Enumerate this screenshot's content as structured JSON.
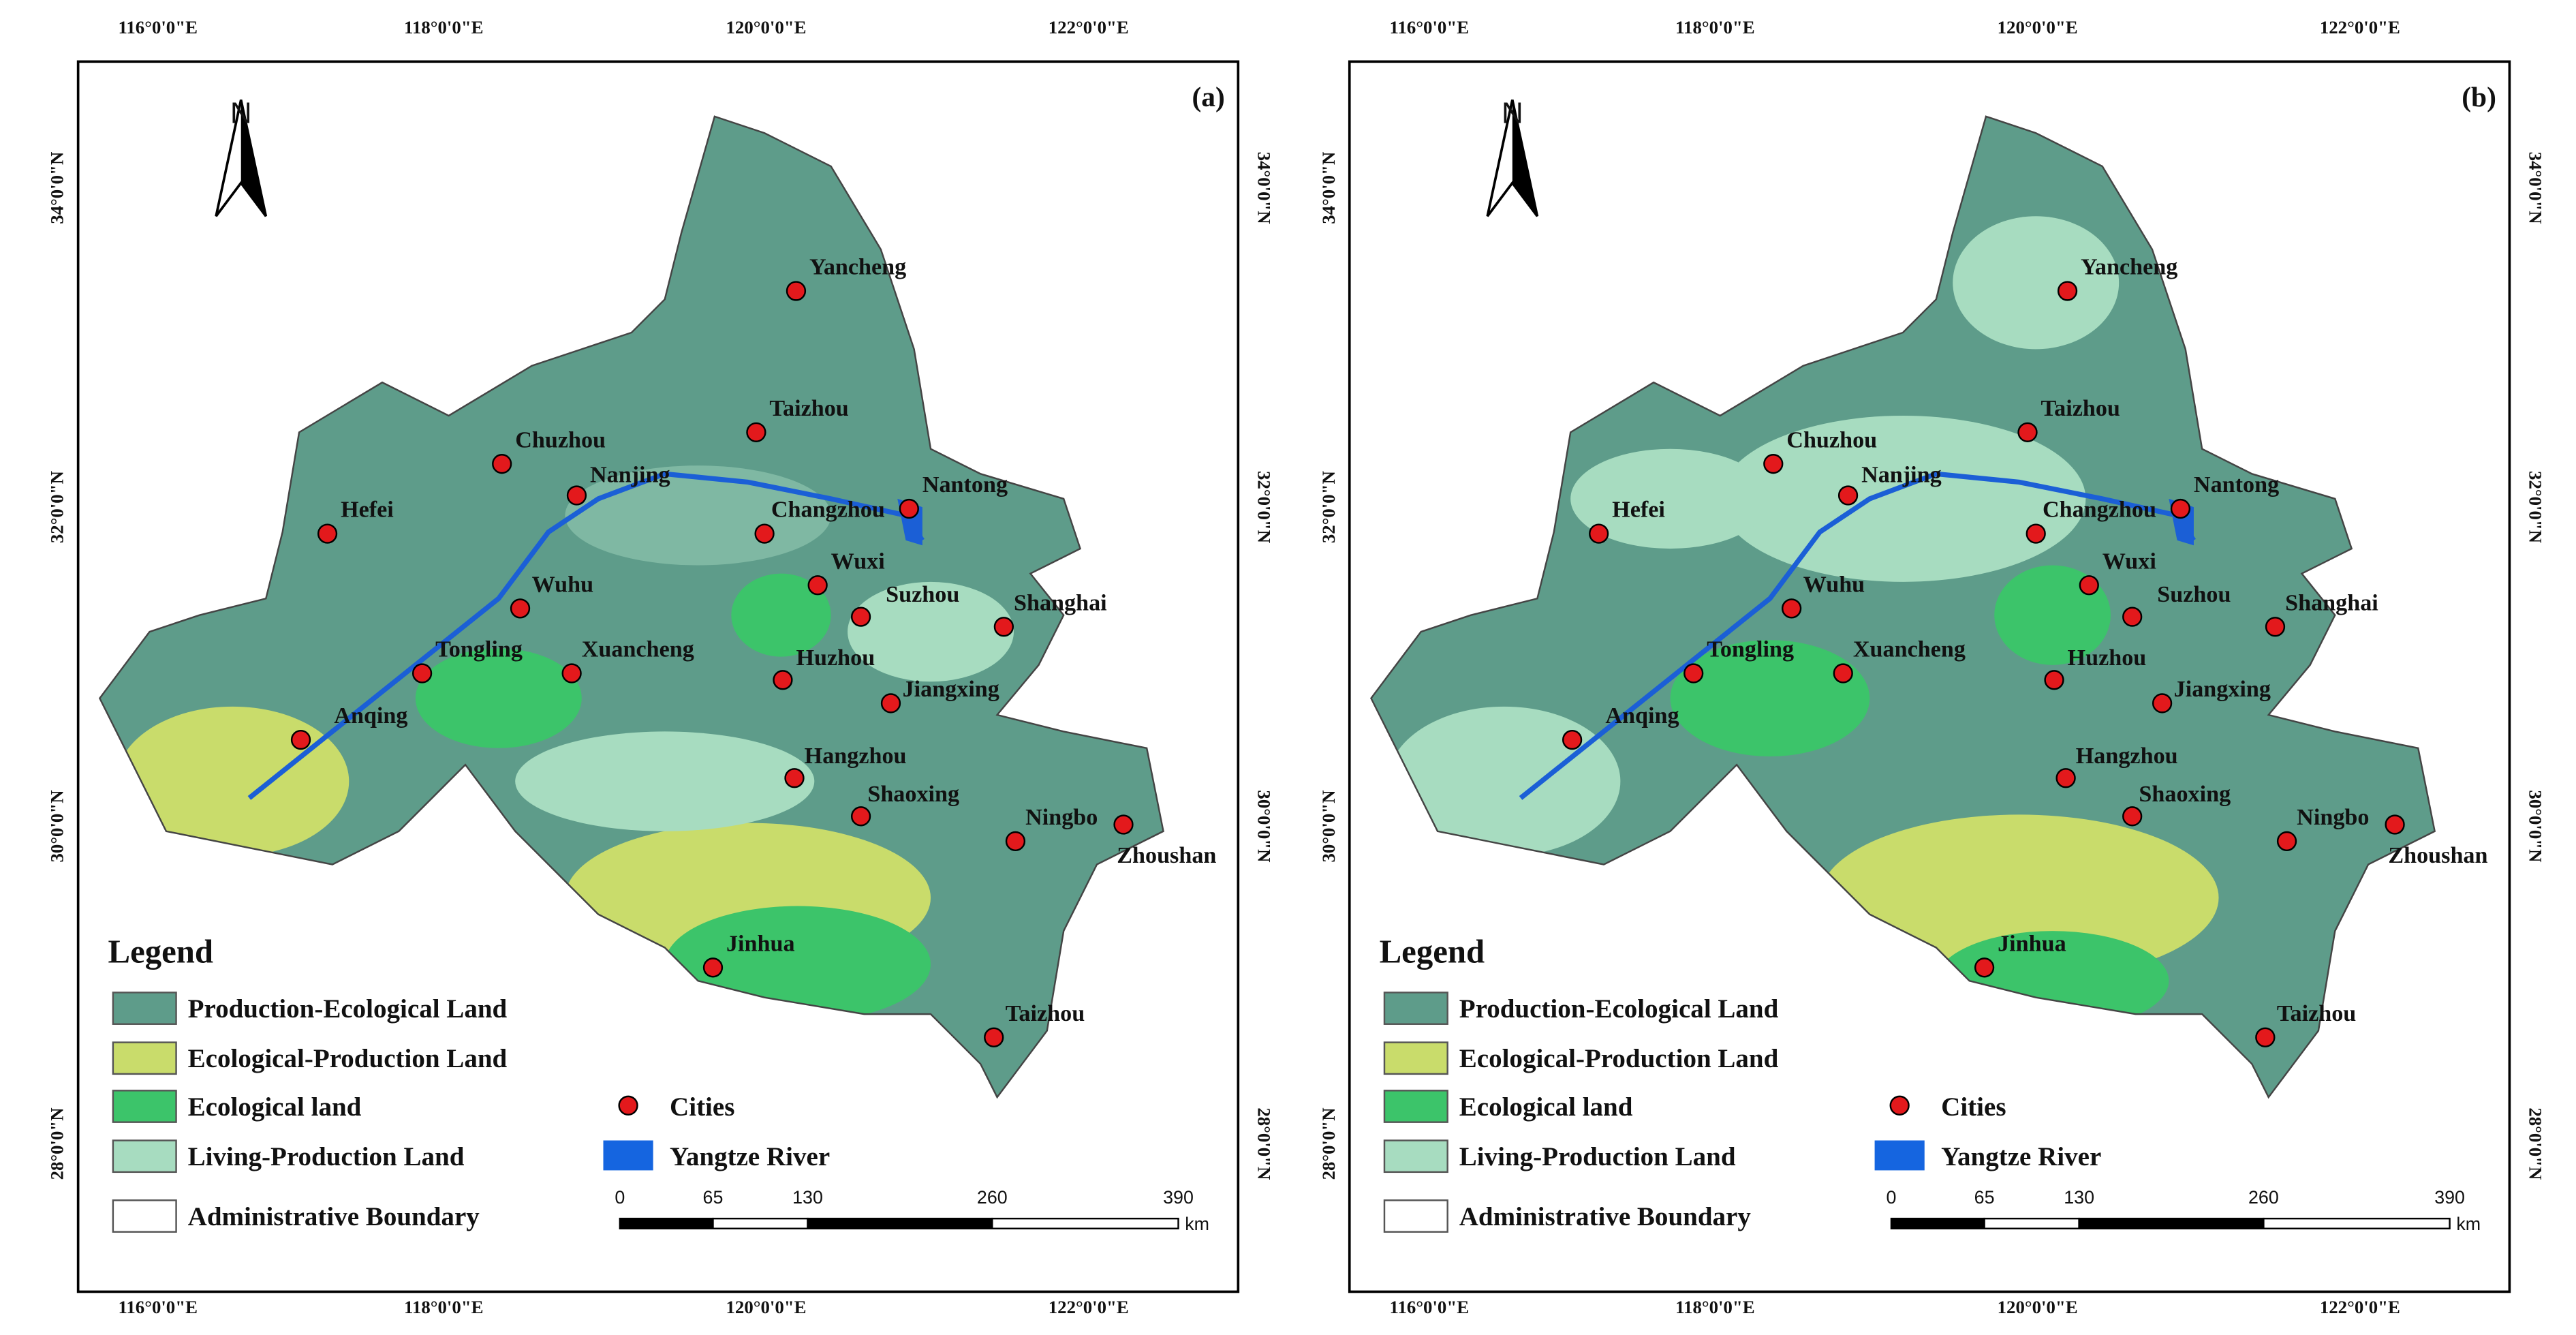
{
  "panels": [
    {
      "label": "(a)"
    },
    {
      "label": "(b)"
    }
  ],
  "graticule": {
    "longitude": [
      "116°0'0\"E",
      "118°0'0\"E",
      "120°0'0\"E",
      "122°0'0\"E"
    ],
    "latitude": [
      "34°0'0\"N",
      "32°0'0\"N",
      "30°0'0\"N",
      "28°0'0\"N"
    ]
  },
  "cities": [
    "Yancheng",
    "Taizhou",
    "Chuzhou",
    "Nanjing",
    "Hefei",
    "Changzhou",
    "Nantong",
    "Wuxi",
    "Suzhou",
    "Shanghai",
    "Wuhu",
    "Tongling",
    "Xuancheng",
    "Huzhou",
    "Jiangxing",
    "Anqing",
    "Hangzhou",
    "Shaoxing",
    "Ningbo",
    "Zhoushan",
    "Jinhua",
    "Taizhou"
  ],
  "legend": {
    "title": "Legend",
    "items": [
      "Production-Ecological Land",
      "Ecological-Production Land",
      "Ecological land",
      "Living-Production Land",
      "Administrative Boundary",
      "Cities",
      "Yangtze River"
    ]
  },
  "scale_bar": {
    "ticks": [
      0,
      65,
      130,
      260,
      390
    ],
    "unit": "km"
  },
  "north_arrow": "N"
}
